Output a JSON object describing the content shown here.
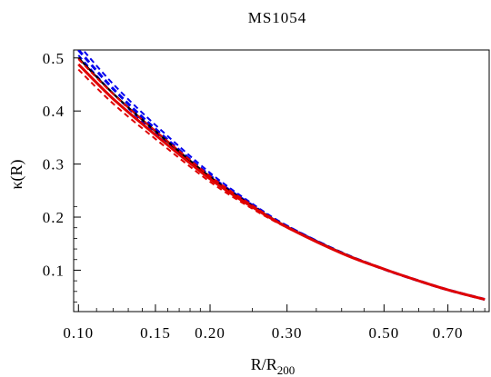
{
  "chart_data": {
    "type": "line",
    "title": "MS1054",
    "xlabel": "R/R",
    "xlabel_subscript": "200",
    "ylabel": "κ(R)",
    "x_scale": "log",
    "xlim": [
      0.0975,
      0.87
    ],
    "ylim": [
      0.022,
      0.515
    ],
    "x_ticks": [
      0.1,
      0.15,
      0.2,
      0.3,
      0.5,
      0.7
    ],
    "x_tick_labels": [
      "0.10",
      "0.15",
      "0.20",
      "0.30",
      "0.50",
      "0.70"
    ],
    "y_ticks": [
      0.1,
      0.2,
      0.3,
      0.4,
      0.5
    ],
    "y_tick_labels": [
      "0.1",
      "0.2",
      "0.3",
      "0.4",
      "0.5"
    ],
    "grid": false,
    "series": [
      {
        "color": "#0000ee",
        "style": "dashed",
        "x": [
          0.1,
          0.12,
          0.15,
          0.2,
          0.25,
          0.3,
          0.4,
          0.5,
          0.6,
          0.7,
          0.85
        ],
        "y": [
          0.515,
          0.442,
          0.366,
          0.278,
          0.222,
          0.183,
          0.133,
          0.102,
          0.08,
          0.063,
          0.045
        ]
      },
      {
        "color": "#000000",
        "style": "solid",
        "x": [
          0.1,
          0.12,
          0.15,
          0.2,
          0.25,
          0.3,
          0.4,
          0.5,
          0.6,
          0.7,
          0.85
        ],
        "y": [
          0.5,
          0.433,
          0.362,
          0.276,
          0.221,
          0.182,
          0.133,
          0.102,
          0.08,
          0.063,
          0.045
        ]
      },
      {
        "color": "#e00000",
        "style": "solid",
        "x": [
          0.1,
          0.12,
          0.15,
          0.2,
          0.25,
          0.3,
          0.4,
          0.5,
          0.6,
          0.7,
          0.85
        ],
        "y": [
          0.488,
          0.423,
          0.355,
          0.272,
          0.219,
          0.181,
          0.132,
          0.102,
          0.08,
          0.063,
          0.045
        ]
      }
    ]
  }
}
